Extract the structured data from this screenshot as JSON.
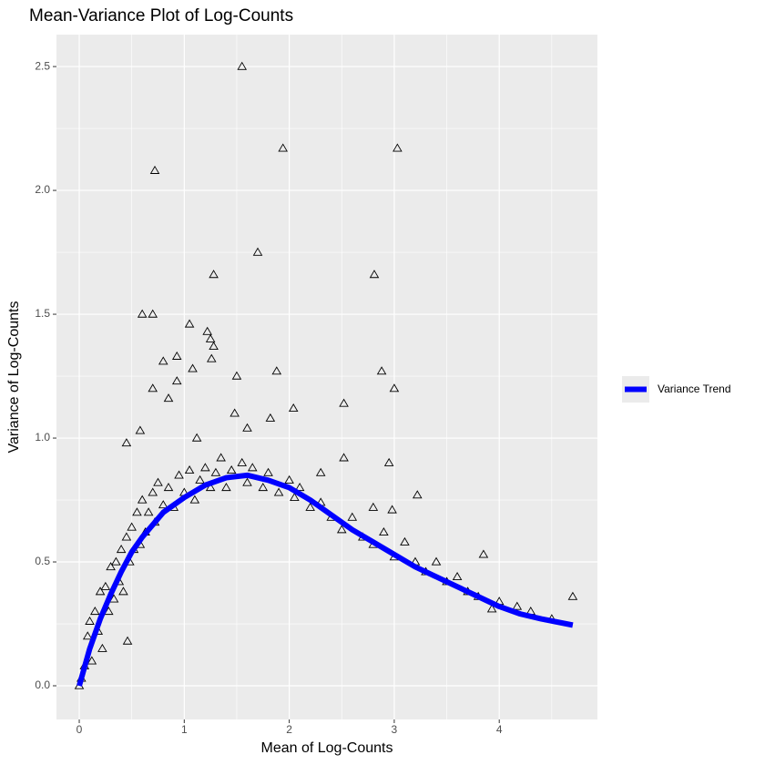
{
  "chart_data": {
    "type": "scatter",
    "title": "Mean-Variance Plot of Log-Counts",
    "x_label": "Mean of Log-Counts",
    "y_label": "Variance of Log-Counts",
    "xlim": [
      -0.217,
      4.935
    ],
    "ylim": [
      -0.136,
      2.629
    ],
    "xticks": [
      0,
      1,
      2,
      3,
      4
    ],
    "yticks": [
      {
        "value": 0,
        "label": "0.0"
      },
      0.5,
      {
        "value": 1,
        "label": "1.0"
      },
      1.5,
      {
        "value": 2,
        "label": "2.0"
      },
      2.5
    ],
    "x_minor_ticks": [
      0.5,
      1.5,
      2.5,
      3.5,
      4.5
    ],
    "y_minor_ticks": [
      0.25,
      0.75,
      1.25,
      1.75,
      2.25
    ],
    "grid": true,
    "legend_position": "right",
    "points": {
      "color": "#000000",
      "x": [
        1.55,
        0.72,
        1.94,
        3.03,
        1.7,
        1.28,
        2.81,
        0.6,
        0.7,
        1.05,
        1.22,
        1.25,
        1.28,
        0.93,
        0.8,
        1.26,
        1.08,
        1.88,
        2.88,
        1.5,
        0.93,
        0.7,
        3.0,
        0.85,
        2.04,
        2.52,
        1.82,
        1.48,
        1.6,
        0.58,
        1.12,
        0.45,
        2.95,
        2.52,
        2.3,
        3.22,
        2.8,
        2.98,
        4.7,
        3.85,
        3.93,
        4.17,
        0,
        0.02,
        0.05,
        0.08,
        0.1,
        0.12,
        0.15,
        0.18,
        0.2,
        0.22,
        0.25,
        0.28,
        0.3,
        0.33,
        0.35,
        0.38,
        0.4,
        0.42,
        0.45,
        0.46,
        0.48,
        0.5,
        0.52,
        0.55,
        0.58,
        0.6,
        0.63,
        0.66,
        0.7,
        0.72,
        0.75,
        0.8,
        0.85,
        0.9,
        0.95,
        1.0,
        1.05,
        1.1,
        1.15,
        1.2,
        1.25,
        1.3,
        1.35,
        1.4,
        1.45,
        1.55,
        1.6,
        1.65,
        1.75,
        1.8,
        1.9,
        2.0,
        2.05,
        2.1,
        2.2,
        2.3,
        2.4,
        2.5,
        2.6,
        2.7,
        2.8,
        2.9,
        3.0,
        3.1,
        3.2,
        3.3,
        3.4,
        3.5,
        3.6,
        3.7,
        3.8,
        4.0,
        4.3,
        4.5
      ],
      "y": [
        2.5,
        2.08,
        2.17,
        2.17,
        1.75,
        1.66,
        1.66,
        1.5,
        1.5,
        1.46,
        1.43,
        1.4,
        1.37,
        1.33,
        1.31,
        1.32,
        1.28,
        1.27,
        1.27,
        1.25,
        1.23,
        1.2,
        1.2,
        1.16,
        1.12,
        1.14,
        1.08,
        1.1,
        1.04,
        1.03,
        1.0,
        0.98,
        0.9,
        0.92,
        0.86,
        0.77,
        0.72,
        0.71,
        0.36,
        0.53,
        0.31,
        0.32,
        0,
        0.03,
        0.08,
        0.2,
        0.26,
        0.1,
        0.3,
        0.22,
        0.38,
        0.15,
        0.4,
        0.3,
        0.48,
        0.35,
        0.5,
        0.42,
        0.55,
        0.38,
        0.6,
        0.18,
        0.5,
        0.64,
        0.55,
        0.7,
        0.57,
        0.75,
        0.62,
        0.7,
        0.78,
        0.66,
        0.82,
        0.73,
        0.8,
        0.72,
        0.85,
        0.78,
        0.87,
        0.75,
        0.83,
        0.88,
        0.8,
        0.86,
        0.92,
        0.8,
        0.87,
        0.9,
        0.82,
        0.88,
        0.8,
        0.86,
        0.78,
        0.83,
        0.76,
        0.8,
        0.72,
        0.74,
        0.68,
        0.63,
        0.68,
        0.6,
        0.57,
        0.62,
        0.52,
        0.58,
        0.5,
        0.46,
        0.5,
        0.42,
        0.44,
        0.38,
        0.36,
        0.34,
        0.3,
        0.27
      ]
    },
    "trend": {
      "name": "Variance Trend",
      "color": "#0000ff",
      "x": [
        0,
        0.1,
        0.2,
        0.3,
        0.4,
        0.5,
        0.6,
        0.8,
        1.0,
        1.2,
        1.4,
        1.6,
        1.8,
        2.0,
        2.2,
        2.4,
        2.6,
        2.8,
        3.0,
        3.2,
        3.4,
        3.6,
        3.8,
        4.0,
        4.2,
        4.4,
        4.7
      ],
      "values": [
        0,
        0.15,
        0.27,
        0.37,
        0.46,
        0.54,
        0.6,
        0.7,
        0.76,
        0.81,
        0.84,
        0.85,
        0.83,
        0.8,
        0.75,
        0.69,
        0.63,
        0.58,
        0.53,
        0.48,
        0.44,
        0.4,
        0.36,
        0.32,
        0.29,
        0.27,
        0.245
      ]
    }
  }
}
